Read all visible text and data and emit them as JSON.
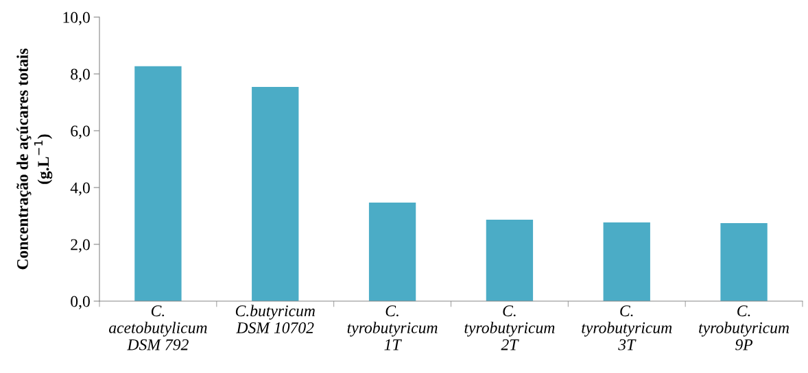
{
  "chart_data": {
    "type": "bar",
    "ylabel": "Concentração de açúcares totais\n(g.L$^{−1}$)",
    "categories": [
      "C.\nacetobutylicum\nDSM 792",
      "C.butyricum\nDSM 10702",
      "C.\ntyrobutyricum\n1T",
      "C.\ntyrobutyricum\n2T",
      "C.\ntyrobutyricum\n3T",
      "C.\ntyrobutyricum\n9P"
    ],
    "values": [
      8.27,
      7.54,
      3.47,
      2.87,
      2.77,
      2.75
    ],
    "color": "#4bacc6",
    "ylim": [
      0,
      10
    ],
    "yticks": [
      {
        "value": 0,
        "label": "0,0"
      },
      {
        "value": 2,
        "label": "2,0"
      },
      {
        "value": 4,
        "label": "4,0"
      },
      {
        "value": 6,
        "label": "6,0"
      },
      {
        "value": 8,
        "label": "8,0"
      },
      {
        "value": 10,
        "label": "10,0"
      }
    ],
    "grid": false
  }
}
